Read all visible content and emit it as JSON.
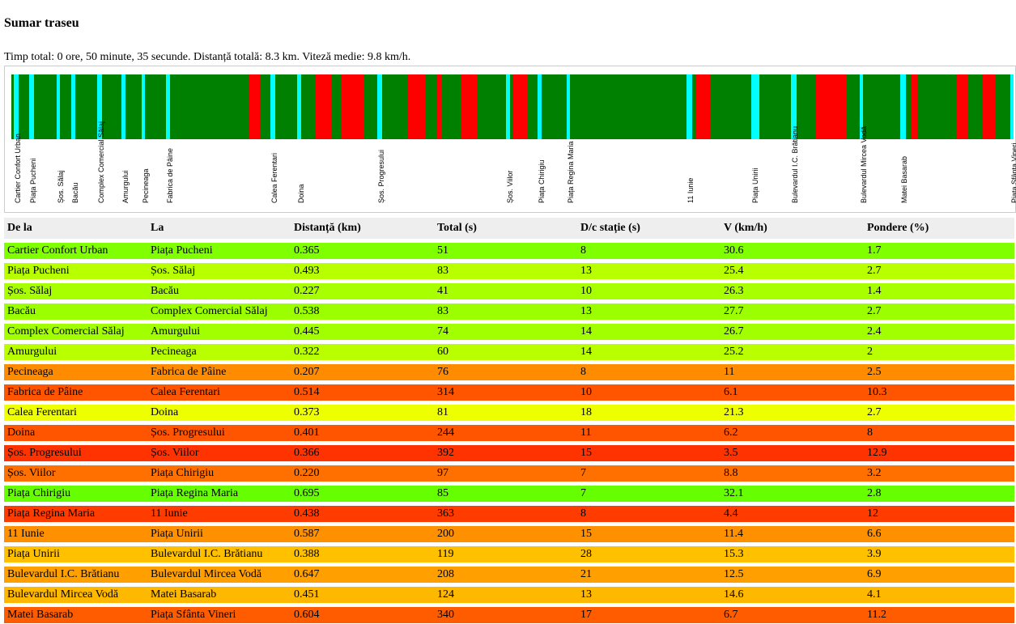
{
  "title": "Sumar traseu",
  "summary": "Timp total: 0 ore, 50 minute, 35 secunde. Distanță totală: 8.3 km. Viteză medie: 9.8 km/h.",
  "strip": {
    "base_color": "#008000",
    "station_color": "#00ffff",
    "slow_color": "#ff0000",
    "stations": [
      "Cartier Confort Urban",
      "Piața Pucheni",
      "Șos. Sălaj",
      "Bacău",
      "Complex Comercial Sălaj",
      "Amurgului",
      "Pecineaga",
      "Fabrica de Pâine",
      "Calea Ferentari",
      "Doina",
      "Șos. Progresului",
      "Șos. Viilor",
      "Piața Chirigiu",
      "Piața Regina Maria",
      "11 Iunie",
      "Piața Unirii",
      "Bulevardul I.C. Brătianu",
      "Bulevardul Mircea Vodă",
      "Matei Basarab",
      "Piața Sfânta Vineri"
    ]
  },
  "table": {
    "headers": [
      "De la",
      "La",
      "Distanță (km)",
      "Total (s)",
      "D/c stație (s)",
      "V (km/h)",
      "Pondere (%)"
    ],
    "rows": [
      {
        "cells": [
          "Cartier Confort Urban",
          "Piața Pucheni",
          "0.365",
          "51",
          "8",
          "30.6",
          "1.7"
        ],
        "color": "#7fff00"
      },
      {
        "cells": [
          "Piața Pucheni",
          "Șos. Sălaj",
          "0.493",
          "83",
          "13",
          "25.4",
          "2.7"
        ],
        "color": "#b8ff00"
      },
      {
        "cells": [
          "Șos. Sălaj",
          "Bacău",
          "0.227",
          "41",
          "10",
          "26.3",
          "1.4"
        ],
        "color": "#a8ff00"
      },
      {
        "cells": [
          "Bacău",
          "Complex Comercial Sălaj",
          "0.538",
          "83",
          "13",
          "27.7",
          "2.7"
        ],
        "color": "#9cff00"
      },
      {
        "cells": [
          "Complex Comercial Sălaj",
          "Amurgului",
          "0.445",
          "74",
          "14",
          "26.7",
          "2.4"
        ],
        "color": "#a2ff00"
      },
      {
        "cells": [
          "Amurgului",
          "Pecineaga",
          "0.322",
          "60",
          "14",
          "25.2",
          "2"
        ],
        "color": "#baff00"
      },
      {
        "cells": [
          "Pecineaga",
          "Fabrica de Pâine",
          "0.207",
          "76",
          "8",
          "11",
          "2.5"
        ],
        "color": "#ff8c00"
      },
      {
        "cells": [
          "Fabrica de Pâine",
          "Calea Ferentari",
          "0.514",
          "314",
          "10",
          "6.1",
          "10.3"
        ],
        "color": "#ff5500"
      },
      {
        "cells": [
          "Calea Ferentari",
          "Doina",
          "0.373",
          "81",
          "18",
          "21.3",
          "2.7"
        ],
        "color": "#eeff00"
      },
      {
        "cells": [
          "Doina",
          "Șos. Progresului",
          "0.401",
          "244",
          "11",
          "6.2",
          "8"
        ],
        "color": "#ff5500"
      },
      {
        "cells": [
          "Șos. Progresului",
          "Șos. Viilor",
          "0.366",
          "392",
          "15",
          "3.5",
          "12.9"
        ],
        "color": "#ff3300"
      },
      {
        "cells": [
          "Șos. Viilor",
          "Piața Chirigiu",
          "0.220",
          "97",
          "7",
          "8.8",
          "3.2"
        ],
        "color": "#ff7000"
      },
      {
        "cells": [
          "Piața Chirigiu",
          "Piața Regina Maria",
          "0.695",
          "85",
          "7",
          "32.1",
          "2.8"
        ],
        "color": "#66ff00"
      },
      {
        "cells": [
          "Piața Regina Maria",
          "11 Iunie",
          "0.438",
          "363",
          "8",
          "4.4",
          "12"
        ],
        "color": "#ff3c00"
      },
      {
        "cells": [
          "11 Iunie",
          "Piața Unirii",
          "0.587",
          "200",
          "15",
          "11.4",
          "6.6"
        ],
        "color": "#ff9000"
      },
      {
        "cells": [
          "Piața Unirii",
          "Bulevardul I.C. Brătianu",
          "0.388",
          "119",
          "28",
          "15.3",
          "3.9"
        ],
        "color": "#ffc000"
      },
      {
        "cells": [
          "Bulevardul I.C. Brătianu",
          "Bulevardul Mircea Vodă",
          "0.647",
          "208",
          "21",
          "12.5",
          "6.9"
        ],
        "color": "#ffa000"
      },
      {
        "cells": [
          "Bulevardul Mircea Vodă",
          "Matei Basarab",
          "0.451",
          "124",
          "13",
          "14.6",
          "4.1"
        ],
        "color": "#ffb800"
      },
      {
        "cells": [
          "Matei Basarab",
          "Piața Sfânta Vineri",
          "0.604",
          "340",
          "17",
          "6.7",
          "11.2"
        ],
        "color": "#ff5c00"
      }
    ]
  }
}
